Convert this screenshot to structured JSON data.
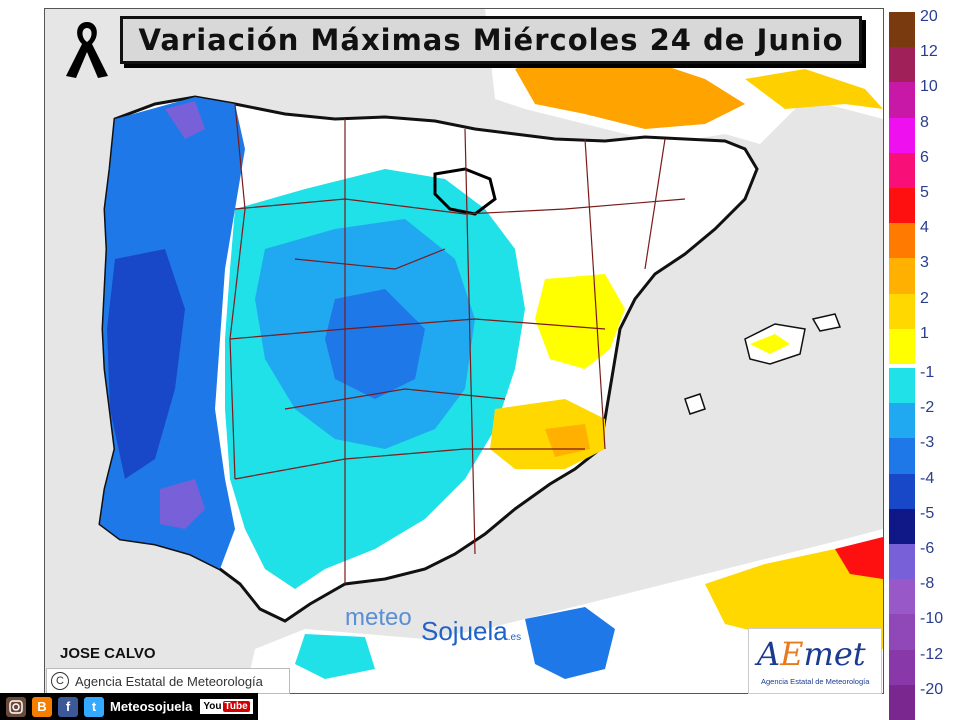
{
  "title": "Variación Máximas Miércoles 24 de Junio",
  "author": "JOSE CALVO",
  "copyright": {
    "symbol": "C",
    "text": "Agencia Estatal de Meteorología"
  },
  "watermark": {
    "part1": "meteo",
    "part2": "Sojuela",
    "suffix": ".es"
  },
  "aemet": {
    "logo_a": "A",
    "logo_e": "E",
    "logo_rest": "met",
    "subtitle": "Agencia Estatal de Meteorología"
  },
  "legend": {
    "items": [
      {
        "label": "20",
        "color": "#7a3a10"
      },
      {
        "label": "12",
        "color": "#a0205a"
      },
      {
        "label": "10",
        "color": "#c818a8"
      },
      {
        "label": "8",
        "color": "#ee10ee"
      },
      {
        "label": "6",
        "color": "#f81078"
      },
      {
        "label": "5",
        "color": "#ff1010"
      },
      {
        "label": "4",
        "color": "#ff7a00"
      },
      {
        "label": "3",
        "color": "#ffb000"
      },
      {
        "label": "2",
        "color": "#ffd800"
      },
      {
        "label": "1",
        "color": "#ffff00"
      },
      {
        "label": "-1",
        "color": "#20e0e8"
      },
      {
        "label": "-2",
        "color": "#20a8f0"
      },
      {
        "label": "-3",
        "color": "#1e78e8"
      },
      {
        "label": "-4",
        "color": "#1848c8"
      },
      {
        "label": "-5",
        "color": "#101888"
      },
      {
        "label": "-6",
        "color": "#7860d8"
      },
      {
        "label": "-8",
        "color": "#9858c8"
      },
      {
        "label": "-10",
        "color": "#9048b8"
      },
      {
        "label": "-12",
        "color": "#8838a8"
      },
      {
        "label": "-20",
        "color": "#7a2890"
      }
    ]
  },
  "bottom_bar": {
    "label": "Meteosojuela",
    "youtube_a": "You",
    "youtube_b": "Tube",
    "icons": [
      "instagram-icon",
      "blogger-icon",
      "facebook-icon",
      "twitter-icon",
      "youtube-icon"
    ],
    "icon_glyphs": {
      "blogger": "B",
      "facebook": "f",
      "twitter": "t"
    }
  }
}
